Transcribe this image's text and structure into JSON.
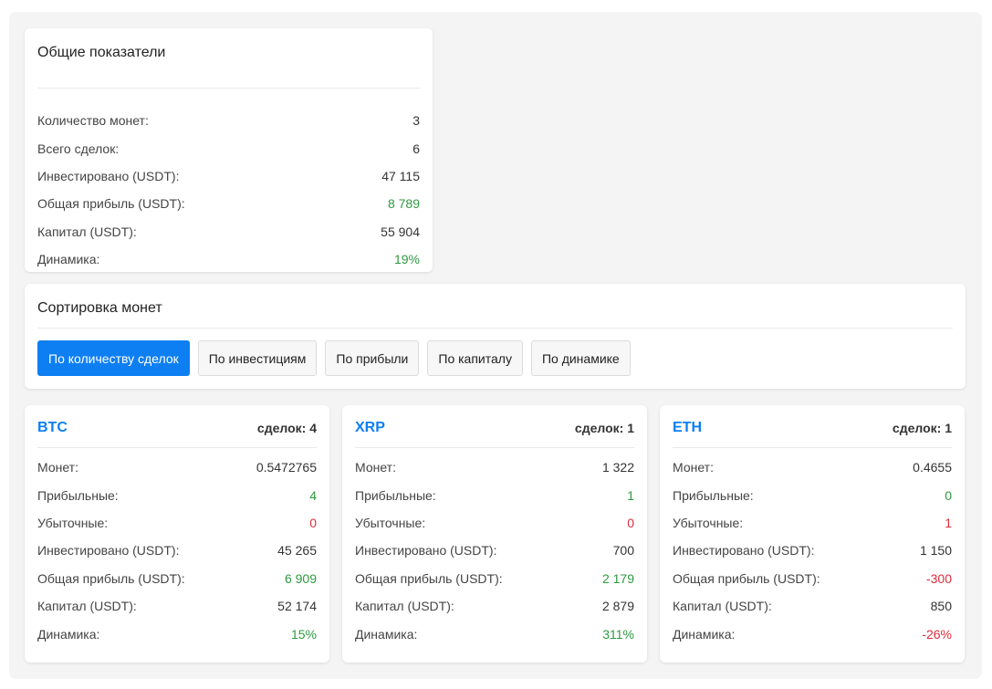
{
  "stats": {
    "title": "Общие показатели",
    "rows": [
      {
        "label": "Количество монет:",
        "value": "3",
        "tone": ""
      },
      {
        "label": "Всего сделок:",
        "value": "6",
        "tone": ""
      },
      {
        "label": "Инвестировано (USDT):",
        "value": "47 115",
        "tone": ""
      },
      {
        "label": "Общая прибыль (USDT):",
        "value": "8 789",
        "tone": "pos"
      },
      {
        "label": "Капитал (USDT):",
        "value": "55 904",
        "tone": ""
      },
      {
        "label": "Динамика:",
        "value": "19%",
        "tone": "pos"
      }
    ]
  },
  "sort": {
    "title": "Сортировка монет",
    "buttons": [
      {
        "label": "По количеству сделок",
        "active": true
      },
      {
        "label": "По инвестициям",
        "active": false
      },
      {
        "label": "По прибыли",
        "active": false
      },
      {
        "label": "По капиталу",
        "active": false
      },
      {
        "label": "По динамике",
        "active": false
      }
    ]
  },
  "coins": [
    {
      "symbol": "BTC",
      "deals": "сделок: 4",
      "rows": [
        {
          "label": "Монет:",
          "value": "0.5472765",
          "tone": ""
        },
        {
          "label": "Прибыльные:",
          "value": "4",
          "tone": "pos"
        },
        {
          "label": "Убыточные:",
          "value": "0",
          "tone": "neg"
        },
        {
          "label": "Инвестировано (USDT):",
          "value": "45 265",
          "tone": ""
        },
        {
          "label": "Общая прибыль (USDT):",
          "value": "6 909",
          "tone": "pos"
        },
        {
          "label": "Капитал (USDT):",
          "value": "52 174",
          "tone": ""
        },
        {
          "label": "Динамика:",
          "value": "15%",
          "tone": "pos"
        }
      ]
    },
    {
      "symbol": "XRP",
      "deals": "сделок: 1",
      "rows": [
        {
          "label": "Монет:",
          "value": "1 322",
          "tone": ""
        },
        {
          "label": "Прибыльные:",
          "value": "1",
          "tone": "pos"
        },
        {
          "label": "Убыточные:",
          "value": "0",
          "tone": "neg"
        },
        {
          "label": "Инвестировано (USDT):",
          "value": "700",
          "tone": ""
        },
        {
          "label": "Общая прибыль (USDT):",
          "value": "2 179",
          "tone": "pos"
        },
        {
          "label": "Капитал (USDT):",
          "value": "2 879",
          "tone": ""
        },
        {
          "label": "Динамика:",
          "value": "311%",
          "tone": "pos"
        }
      ]
    },
    {
      "symbol": "ETH",
      "deals": "сделок: 1",
      "rows": [
        {
          "label": "Монет:",
          "value": "0.4655",
          "tone": ""
        },
        {
          "label": "Прибыльные:",
          "value": "0",
          "tone": "pos"
        },
        {
          "label": "Убыточные:",
          "value": "1",
          "tone": "neg"
        },
        {
          "label": "Инвестировано (USDT):",
          "value": "1 150",
          "tone": ""
        },
        {
          "label": "Общая прибыль (USDT):",
          "value": "-300",
          "tone": "neg"
        },
        {
          "label": "Капитал (USDT):",
          "value": "850",
          "tone": ""
        },
        {
          "label": "Динамика:",
          "value": "-26%",
          "tone": "neg"
        }
      ]
    }
  ],
  "colors": {
    "accent": "#0d7ff2",
    "positive": "#2e9a40",
    "negative": "#e02b3c"
  }
}
